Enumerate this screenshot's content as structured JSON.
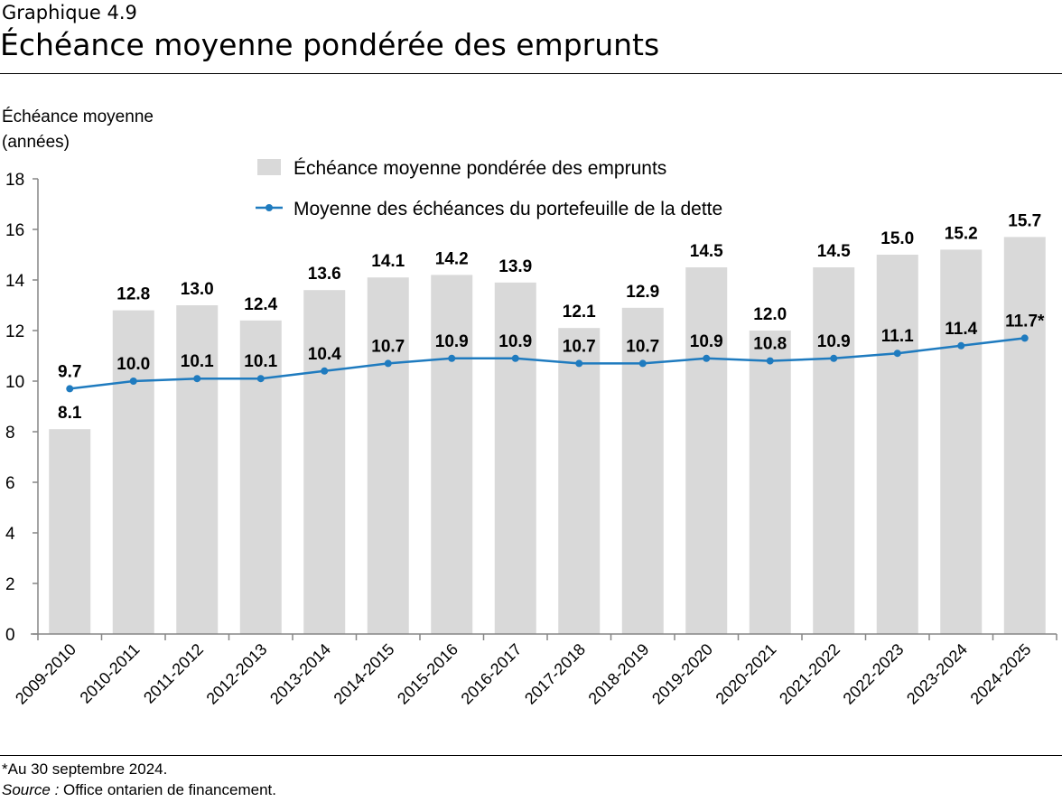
{
  "header": {
    "supertitle": "Graphique 4.9",
    "title": "Échéance moyenne pondérée des emprunts"
  },
  "footer": {
    "note": "*Au 30 septembre 2024.",
    "source_label": "Source :",
    "source": " Office ontarien de financement."
  },
  "chart_data": {
    "type": "bar+line",
    "ylabel_line1": "Échéance moyenne",
    "ylabel_line2": "(années)",
    "ylim": [
      0,
      18
    ],
    "yticks": [
      "0",
      "2",
      "4",
      "6",
      "8",
      "10",
      "12",
      "14",
      "16",
      "18"
    ],
    "grid": false,
    "legend_position": "top-center",
    "categories": [
      "2009-2010",
      "2010-2011",
      "2011-2012",
      "2012-2013",
      "2013-2014",
      "2014-2015",
      "2015-2016",
      "2016-2017",
      "2017-2018",
      "2018-2019",
      "2019-2020",
      "2020-2021",
      "2021-2022",
      "2022-2023",
      "2023-2024",
      "2024-2025"
    ],
    "series": [
      {
        "name": "Échéance moyenne pondérée des emprunts",
        "type": "bar",
        "color": "#d9d9d9",
        "values": [
          8.1,
          12.8,
          13.0,
          12.4,
          13.6,
          14.1,
          14.2,
          13.9,
          12.1,
          12.9,
          14.5,
          12.0,
          14.5,
          15.0,
          15.2,
          15.7
        ],
        "labels": [
          "8.1",
          "12.8",
          "13.0",
          "12.4",
          "13.6",
          "14.1",
          "14.2",
          "13.9",
          "12.1",
          "12.9",
          "14.5",
          "12.0",
          "14.5",
          "15.0",
          "15.2",
          "15.7"
        ]
      },
      {
        "name": "Moyenne des échéances du portefeuille de la dette",
        "type": "line",
        "color": "#1f7bbf",
        "values": [
          9.7,
          10.0,
          10.1,
          10.1,
          10.4,
          10.7,
          10.9,
          10.9,
          10.7,
          10.7,
          10.9,
          10.8,
          10.9,
          11.1,
          11.4,
          11.7
        ],
        "labels": [
          "9.7",
          "10.0",
          "10.1",
          "10.1",
          "10.4",
          "10.7",
          "10.9",
          "10.9",
          "10.7",
          "10.7",
          "10.9",
          "10.8",
          "10.9",
          "11.1",
          "11.4",
          "11.7*"
        ]
      }
    ]
  }
}
